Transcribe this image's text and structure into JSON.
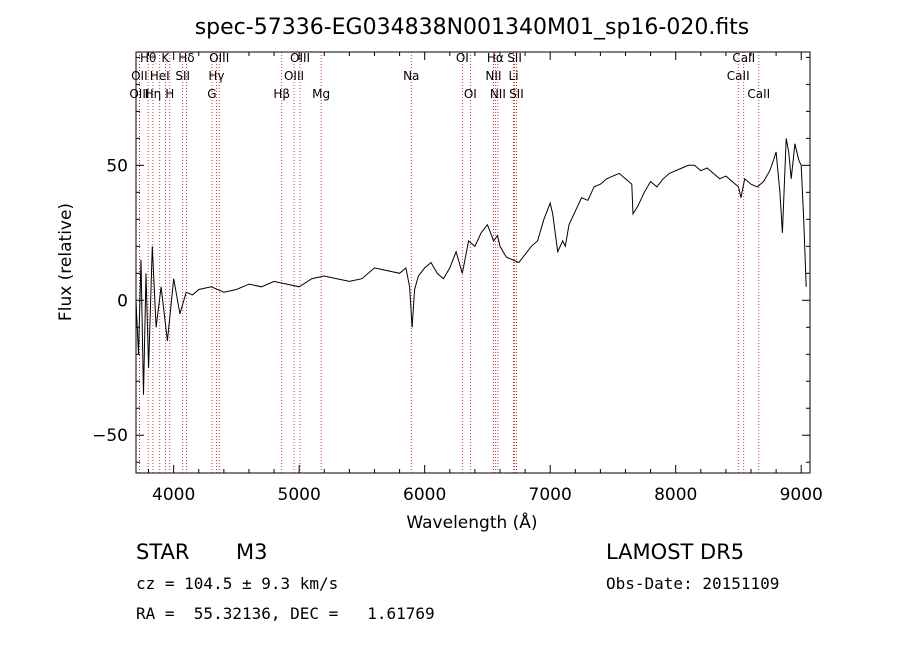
{
  "colors": {
    "spectrum": "#000000",
    "lines": "#c01010",
    "axes": "#000000",
    "background": "#ffffff"
  },
  "chart_data": {
    "type": "line",
    "title": "spec-57336-EG034838N001340M01_sp16-020.fits",
    "xlabel": "Wavelength (Å)",
    "ylabel": "Flux (relative)",
    "xlim": [
      3700,
      9070
    ],
    "ylim": [
      -64,
      92
    ],
    "xticks": [
      4000,
      5000,
      6000,
      7000,
      8000,
      9000
    ],
    "yticks": [
      -50,
      0,
      50
    ],
    "grid": false,
    "series": [
      {
        "x": [
          3700,
          3720,
          3740,
          3760,
          3780,
          3800,
          3830,
          3860,
          3900,
          3950,
          4000,
          4050,
          4100,
          4150,
          4200,
          4300,
          4400,
          4500,
          4600,
          4700,
          4800,
          4900,
          5000,
          5100,
          5200,
          5300,
          5400,
          5500,
          5600,
          5700,
          5800,
          5850,
          5880,
          5900,
          5920,
          5950,
          6000,
          6050,
          6100,
          6150,
          6200,
          6250,
          6300,
          6350,
          6400,
          6450,
          6500,
          6550,
          6580,
          6600,
          6650,
          6700,
          6750,
          6800,
          6850,
          6900,
          6950,
          7000,
          7020,
          7040,
          7060,
          7100,
          7120,
          7150,
          7200,
          7250,
          7300,
          7350,
          7400,
          7450,
          7500,
          7550,
          7600,
          7650,
          7660,
          7700,
          7750,
          7800,
          7850,
          7900,
          7950,
          8000,
          8050,
          8100,
          8150,
          8200,
          8250,
          8300,
          8350,
          8400,
          8450,
          8500,
          8520,
          8550,
          8600,
          8650,
          8700,
          8750,
          8780,
          8800,
          8830,
          8850,
          8880,
          8900,
          8920,
          8950,
          8980,
          9000,
          9020,
          9040
        ],
        "y": [
          0,
          -20,
          15,
          -35,
          10,
          -25,
          20,
          -10,
          5,
          -15,
          8,
          -5,
          3,
          2,
          4,
          5,
          3,
          4,
          6,
          5,
          7,
          6,
          5,
          8,
          9,
          8,
          7,
          8,
          12,
          11,
          10,
          12,
          5,
          -10,
          4,
          9,
          12,
          14,
          10,
          8,
          12,
          18,
          10,
          22,
          20,
          25,
          28,
          22,
          24,
          20,
          16,
          15,
          14,
          17,
          20,
          22,
          30,
          36,
          32,
          25,
          18,
          22,
          20,
          28,
          33,
          38,
          37,
          42,
          43,
          45,
          46,
          47,
          45,
          43,
          32,
          35,
          40,
          44,
          42,
          45,
          47,
          48,
          49,
          50,
          50,
          48,
          49,
          47,
          45,
          46,
          44,
          42,
          38,
          45,
          43,
          42,
          44,
          48,
          52,
          55,
          40,
          25,
          60,
          55,
          45,
          58,
          52,
          50,
          30,
          5
        ]
      }
    ],
    "lines": [
      {
        "label": "Hθ",
        "row": 1,
        "x": 3797
      },
      {
        "label": "K",
        "row": 1,
        "x": 3934
      },
      {
        "label": "Hδ",
        "row": 1,
        "x": 4102
      },
      {
        "label": "OIII",
        "row": 1,
        "x": 4363
      },
      {
        "label": "OIII",
        "row": 1,
        "x": 5007
      },
      {
        "label": "OI",
        "row": 1,
        "x": 6300
      },
      {
        "label": "Hα",
        "row": 1,
        "x": 6563
      },
      {
        "label": "SII",
        "row": 1,
        "x": 6716
      },
      {
        "label": "CaII",
        "row": 1,
        "x": 8542
      },
      {
        "label": "OII",
        "row": 2,
        "x": 3727
      },
      {
        "label": "HeI",
        "row": 2,
        "x": 3889
      },
      {
        "label": "SII",
        "row": 2,
        "x": 4072
      },
      {
        "label": "Hγ",
        "row": 2,
        "x": 4341
      },
      {
        "label": "OIII",
        "row": 2,
        "x": 4959
      },
      {
        "label": "Na",
        "row": 2,
        "x": 5893
      },
      {
        "label": "NII",
        "row": 2,
        "x": 6548
      },
      {
        "label": "Li",
        "row": 2,
        "x": 6708
      },
      {
        "label": "CaII",
        "row": 2,
        "x": 8498
      },
      {
        "label": "OIII",
        "row": 3,
        "x": 3727
      },
      {
        "label": "Hη",
        "row": 3,
        "x": 3835
      },
      {
        "label": "H",
        "row": 3,
        "x": 3969
      },
      {
        "label": "G",
        "row": 3,
        "x": 4305
      },
      {
        "label": "Hβ",
        "row": 3,
        "x": 4861
      },
      {
        "label": "Mg",
        "row": 3,
        "x": 5175
      },
      {
        "label": "OI",
        "row": 3,
        "x": 6364
      },
      {
        "label": "NII",
        "row": 3,
        "x": 6583
      },
      {
        "label": "SII",
        "row": 3,
        "x": 6731
      },
      {
        "label": "CaII",
        "row": 3,
        "x": 8662
      }
    ]
  },
  "info": {
    "object_type": "STAR",
    "subclass": "M3",
    "survey": "LAMOST DR5",
    "cz": "cz = 104.5 ± 9.3 km/s",
    "obs_date": "Obs-Date: 20151109",
    "coords": "RA =  55.32136, DEC =   1.61769"
  }
}
